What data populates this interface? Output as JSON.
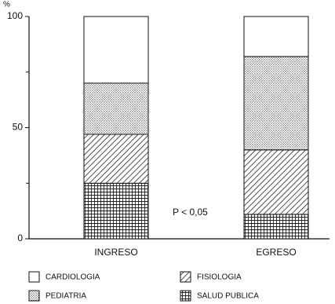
{
  "chart_data": {
    "type": "stacked_bar",
    "y_label": "%",
    "annotation": "P < 0,05",
    "categories": [
      "INGRESO",
      "EGRESO"
    ],
    "series": [
      {
        "name": "SALUD PUBLICA",
        "color": "#111111",
        "pattern": "grid",
        "values": [
          25,
          11
        ]
      },
      {
        "name": "FISIOLOGIA",
        "color": "#111111",
        "pattern": "hatch",
        "values": [
          22,
          29
        ]
      },
      {
        "name": "PEDIATRIA",
        "color": "#111111",
        "pattern": "dots",
        "values": [
          23,
          42
        ]
      },
      {
        "name": "CARDIOLOGIA",
        "color": "#111111",
        "pattern": "none",
        "values": [
          30,
          18
        ]
      }
    ],
    "ylim": [
      0,
      100
    ],
    "yticks": [
      0,
      50,
      100
    ],
    "minor_yticks": [
      25,
      75
    ]
  }
}
